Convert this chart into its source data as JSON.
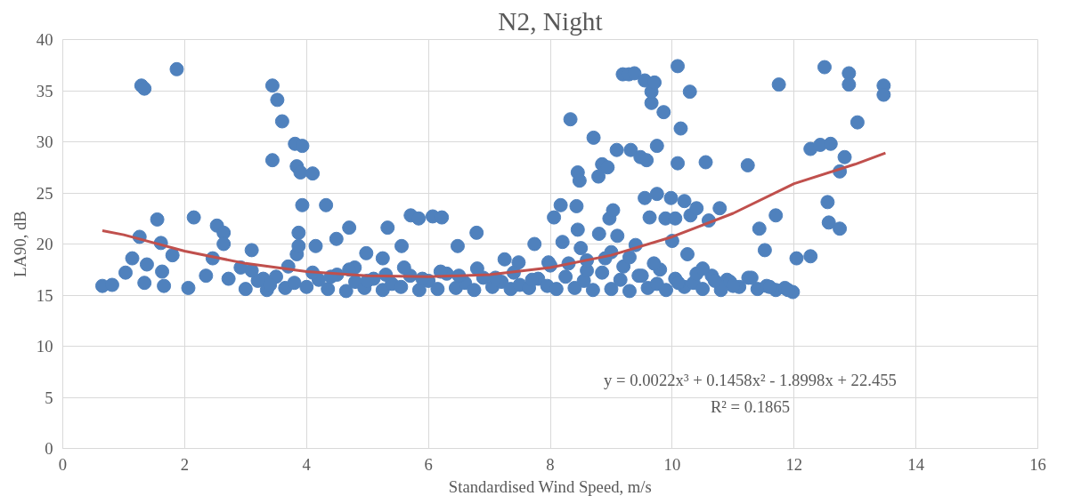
{
  "chart_data": {
    "type": "scatter",
    "title": "N2, Night",
    "xlabel": "Standardised Wind Speed, m/s",
    "ylabel": "LA90, dB",
    "xlim": [
      0,
      16
    ],
    "xticks": [
      0,
      2,
      4,
      6,
      8,
      10,
      12,
      14,
      16
    ],
    "ylim": [
      0,
      40
    ],
    "yticks": [
      0,
      5,
      10,
      15,
      20,
      25,
      30,
      35,
      40
    ],
    "grid": true,
    "annotations": [
      "y = 0.0022x³ + 0.1458x² - 1.8998x + 22.455",
      "R² = 0.1865"
    ],
    "series": [
      {
        "marker": "circle",
        "color": "#4f81bd",
        "x": [
          0.65,
          0.81,
          1.03,
          1.14,
          1.26,
          1.29,
          1.34,
          1.34,
          1.38,
          1.55,
          1.61,
          1.63,
          1.66,
          1.8,
          1.87,
          2.06,
          2.15,
          2.35,
          2.46,
          2.53,
          2.64,
          2.64,
          2.72,
          2.92,
          3.1,
          3.29,
          3.44,
          3.44,
          3.52,
          3.6,
          3.81,
          3.84,
          3.84,
          3.87,
          3.87,
          3.9,
          3.93,
          3.93,
          4.1,
          4.15,
          4.32,
          4.49,
          4.7,
          4.79,
          4.98,
          5.25,
          5.33,
          5.56,
          5.71,
          5.84,
          6.07,
          6.22,
          6.48,
          6.79,
          7.25,
          7.48,
          7.74,
          7.97,
          8.06,
          8.17,
          8.33,
          8.43,
          8.45,
          8.45,
          8.48,
          8.71,
          8.79,
          8.85,
          8.94,
          8.97,
          9.03,
          9.09,
          9.19,
          9.29,
          9.32,
          9.38,
          9.48,
          9.55,
          9.55,
          9.58,
          9.63,
          9.66,
          9.66,
          9.71,
          9.75,
          9.75,
          9.86,
          9.89,
          9.98,
          10.05,
          10.09,
          10.09,
          10.14,
          10.2,
          10.29,
          10.3,
          10.4,
          10.55,
          10.6,
          10.78,
          10.9,
          11.24,
          11.43,
          11.52,
          11.7,
          11.75,
          11.98,
          12.04,
          12.27,
          12.27,
          12.43,
          12.5,
          12.55,
          12.57,
          12.6,
          12.75,
          12.75,
          12.83,
          12.9,
          12.9,
          13.04,
          13.47,
          13.47,
          3.0,
          3.2,
          3.35,
          3.5,
          3.65,
          3.8,
          4.0,
          4.2,
          4.35,
          4.5,
          4.65,
          4.8,
          4.95,
          5.1,
          5.25,
          5.4,
          5.55,
          5.7,
          5.85,
          6.0,
          6.15,
          6.3,
          6.45,
          6.6,
          6.75,
          6.9,
          7.05,
          7.2,
          7.35,
          7.5,
          7.65,
          7.8,
          7.95,
          8.1,
          8.25,
          8.4,
          8.55,
          8.7,
          8.85,
          9.0,
          9.15,
          9.3,
          9.45,
          9.6,
          9.75,
          9.9,
          10.05,
          10.2,
          10.35,
          10.5,
          10.65,
          10.8,
          10.95,
          11.1,
          11.25,
          11.4,
          11.55,
          11.7,
          11.85,
          3.1,
          3.4,
          3.7,
          4.1,
          4.4,
          4.7,
          5.0,
          5.3,
          5.6,
          5.9,
          6.2,
          6.5,
          6.8,
          7.1,
          7.4,
          7.7,
          8.0,
          8.3,
          8.6,
          8.9,
          9.2,
          9.5,
          9.8,
          10.1,
          10.4,
          10.7,
          11.0,
          11.3,
          11.6,
          11.9,
          8.2,
          8.5,
          8.6,
          8.8,
          9.0,
          9.1,
          9.3,
          9.4,
          9.7,
          10.0,
          10.25,
          10.5
        ],
        "values": [
          15.9,
          16.0,
          17.2,
          18.6,
          20.7,
          35.5,
          35.2,
          16.2,
          18.0,
          22.4,
          20.1,
          17.3,
          15.9,
          18.9,
          37.1,
          15.7,
          22.6,
          16.9,
          18.6,
          21.8,
          21.1,
          20.0,
          16.6,
          17.7,
          19.4,
          16.6,
          35.5,
          28.2,
          34.1,
          32.0,
          29.8,
          27.6,
          19.0,
          21.1,
          19.8,
          27.0,
          29.6,
          23.8,
          26.9,
          19.8,
          23.8,
          20.5,
          21.6,
          17.7,
          19.1,
          18.6,
          21.6,
          19.8,
          22.8,
          22.5,
          22.7,
          22.6,
          19.8,
          21.1,
          18.5,
          18.2,
          20.0,
          18.2,
          22.6,
          23.8,
          32.2,
          23.7,
          21.4,
          27.0,
          26.2,
          30.4,
          26.6,
          27.8,
          27.5,
          22.5,
          23.3,
          29.2,
          36.6,
          36.6,
          29.2,
          36.7,
          28.5,
          36.0,
          24.5,
          28.2,
          22.6,
          33.8,
          34.9,
          35.8,
          29.6,
          24.9,
          32.9,
          22.5,
          24.5,
          22.5,
          37.4,
          27.9,
          31.3,
          24.2,
          34.9,
          22.8,
          23.5,
          28.0,
          22.3,
          23.5,
          16.5,
          27.7,
          21.5,
          19.4,
          22.8,
          35.6,
          15.3,
          18.6,
          18.8,
          29.3,
          29.7,
          37.3,
          24.1,
          22.1,
          29.8,
          27.1,
          21.5,
          28.5,
          36.7,
          35.6,
          31.9,
          35.5,
          34.6,
          15.6,
          16.4,
          15.5,
          16.8,
          15.7,
          16.2,
          15.8,
          16.5,
          15.6,
          17.0,
          15.4,
          16.3,
          15.7,
          16.6,
          15.5,
          16.1,
          15.8,
          16.9,
          15.5,
          16.4,
          15.6,
          17.1,
          15.7,
          16.2,
          15.5,
          16.7,
          15.8,
          16.3,
          15.6,
          16.0,
          15.7,
          16.6,
          15.9,
          15.6,
          16.8,
          15.7,
          16.4,
          15.5,
          17.2,
          15.6,
          16.5,
          15.4,
          16.9,
          15.7,
          16.1,
          15.5,
          16.6,
          15.8,
          16.2,
          15.6,
          16.9,
          15.5,
          16.3,
          15.8,
          16.7,
          15.6,
          15.9,
          15.5,
          15.7,
          17.4,
          16.0,
          17.8,
          17.2,
          16.8,
          17.5,
          16.4,
          17.0,
          17.7,
          16.6,
          17.3,
          16.9,
          17.6,
          16.7,
          17.2,
          16.5,
          17.9,
          18.1,
          17.4,
          18.6,
          17.8,
          16.9,
          17.5,
          16.2,
          17.1,
          16.4,
          15.9,
          16.7,
          15.8,
          15.5,
          20.2,
          19.6,
          18.4,
          21.0,
          19.2,
          20.8,
          18.7,
          19.9,
          18.1,
          20.3,
          19.0,
          17.6
        ]
      },
      {
        "type": "line",
        "marker": "none",
        "color": "#c0504d",
        "x": [
          0.65,
          1,
          2,
          3,
          4,
          5,
          6,
          7,
          8,
          9,
          10,
          11,
          12,
          13,
          13.5
        ],
        "values": [
          21.3,
          20.9,
          19.3,
          18.1,
          17.3,
          16.9,
          16.8,
          17.0,
          17.7,
          18.9,
          20.7,
          23.0,
          25.9,
          27.8,
          28.9
        ]
      }
    ]
  }
}
